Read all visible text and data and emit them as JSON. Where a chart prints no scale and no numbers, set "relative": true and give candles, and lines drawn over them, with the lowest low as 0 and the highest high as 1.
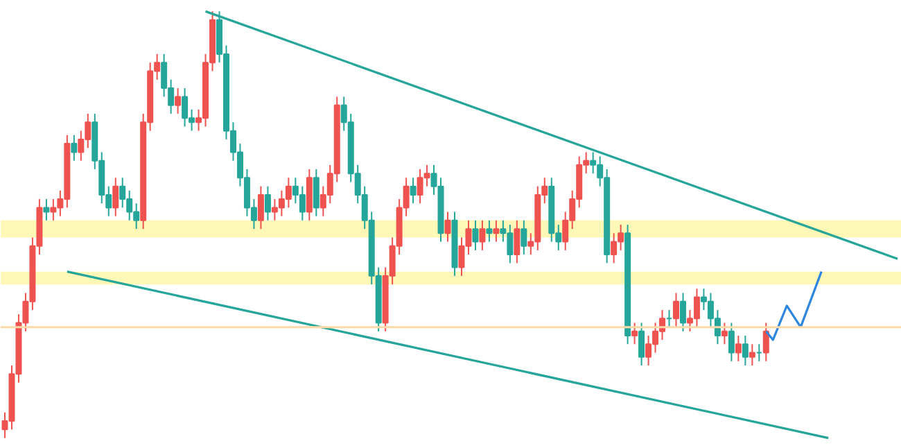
{
  "chart_data": {
    "type": "candlestick",
    "relative": true,
    "tick_labels": false,
    "categories": [
      null,
      null,
      null,
      null,
      null,
      null,
      null,
      null,
      null,
      null,
      null,
      null,
      null,
      null,
      null,
      null,
      null,
      null,
      null,
      null,
      null,
      null,
      null,
      null,
      null,
      null,
      null,
      null,
      null,
      null,
      null,
      null,
      null,
      null,
      null,
      null,
      null,
      null,
      null,
      null,
      null,
      null,
      null,
      null,
      null,
      null,
      null,
      null,
      null,
      null,
      null,
      null,
      null,
      null,
      null,
      null,
      null,
      null,
      null,
      null,
      null,
      null,
      null,
      null,
      null,
      null,
      null,
      null,
      null,
      null,
      null,
      null,
      null,
      null,
      null,
      null,
      null,
      null,
      null,
      null,
      null,
      null,
      null,
      null,
      null,
      null,
      null,
      null,
      null,
      null,
      null,
      null,
      null,
      null,
      null,
      null,
      null,
      null,
      null,
      null,
      null,
      null,
      null,
      null,
      null,
      null,
      null,
      null,
      null,
      null,
      null,
      null,
      null,
      null,
      null,
      null,
      null,
      null,
      null,
      null,
      null,
      null,
      null,
      null,
      null,
      null,
      null,
      null,
      null,
      null
    ],
    "ohlc": [
      [
        0.02,
        0.06,
        0.0,
        0.04
      ],
      [
        0.04,
        0.17,
        0.02,
        0.15
      ],
      [
        0.15,
        0.29,
        0.13,
        0.27
      ],
      [
        0.27,
        0.34,
        0.25,
        0.32
      ],
      [
        0.32,
        0.47,
        0.3,
        0.45
      ],
      [
        0.45,
        0.56,
        0.43,
        0.54
      ],
      [
        0.54,
        0.56,
        0.51,
        0.53
      ],
      [
        0.53,
        0.56,
        0.51,
        0.54
      ],
      [
        0.54,
        0.58,
        0.52,
        0.56
      ],
      [
        0.56,
        0.71,
        0.54,
        0.69
      ],
      [
        0.69,
        0.71,
        0.65,
        0.67
      ],
      [
        0.67,
        0.72,
        0.65,
        0.7
      ],
      [
        0.7,
        0.76,
        0.68,
        0.74
      ],
      [
        0.74,
        0.76,
        0.63,
        0.65
      ],
      [
        0.65,
        0.67,
        0.55,
        0.57
      ],
      [
        0.57,
        0.59,
        0.52,
        0.54
      ],
      [
        0.54,
        0.61,
        0.52,
        0.59
      ],
      [
        0.59,
        0.61,
        0.54,
        0.56
      ],
      [
        0.56,
        0.58,
        0.51,
        0.53
      ],
      [
        0.53,
        0.55,
        0.49,
        0.51
      ],
      [
        0.51,
        0.76,
        0.49,
        0.74
      ],
      [
        0.74,
        0.88,
        0.72,
        0.86
      ],
      [
        0.86,
        0.9,
        0.84,
        0.88
      ],
      [
        0.88,
        0.9,
        0.8,
        0.82
      ],
      [
        0.82,
        0.84,
        0.76,
        0.78
      ],
      [
        0.78,
        0.82,
        0.76,
        0.8
      ],
      [
        0.8,
        0.82,
        0.73,
        0.75
      ],
      [
        0.75,
        0.77,
        0.72,
        0.74
      ],
      [
        0.74,
        0.77,
        0.72,
        0.75
      ],
      [
        0.75,
        0.9,
        0.73,
        0.88
      ],
      [
        0.88,
        1.0,
        0.86,
        0.98
      ],
      [
        0.98,
        1.0,
        0.88,
        0.9
      ],
      [
        0.9,
        0.92,
        0.7,
        0.72
      ],
      [
        0.72,
        0.74,
        0.65,
        0.67
      ],
      [
        0.67,
        0.69,
        0.59,
        0.61
      ],
      [
        0.61,
        0.63,
        0.52,
        0.54
      ],
      [
        0.54,
        0.56,
        0.49,
        0.51
      ],
      [
        0.51,
        0.59,
        0.49,
        0.57
      ],
      [
        0.57,
        0.59,
        0.51,
        0.53
      ],
      [
        0.53,
        0.56,
        0.51,
        0.54
      ],
      [
        0.54,
        0.58,
        0.52,
        0.56
      ],
      [
        0.56,
        0.61,
        0.54,
        0.59
      ],
      [
        0.59,
        0.61,
        0.55,
        0.57
      ],
      [
        0.57,
        0.59,
        0.51,
        0.53
      ],
      [
        0.53,
        0.63,
        0.51,
        0.61
      ],
      [
        0.61,
        0.63,
        0.52,
        0.54
      ],
      [
        0.54,
        0.59,
        0.52,
        0.57
      ],
      [
        0.57,
        0.64,
        0.55,
        0.62
      ],
      [
        0.62,
        0.8,
        0.6,
        0.78
      ],
      [
        0.78,
        0.8,
        0.72,
        0.74
      ],
      [
        0.74,
        0.76,
        0.6,
        0.62
      ],
      [
        0.62,
        0.64,
        0.55,
        0.57
      ],
      [
        0.57,
        0.59,
        0.49,
        0.51
      ],
      [
        0.51,
        0.53,
        0.36,
        0.38
      ],
      [
        0.38,
        0.4,
        0.25,
        0.27
      ],
      [
        0.27,
        0.4,
        0.25,
        0.38
      ],
      [
        0.38,
        0.47,
        0.36,
        0.45
      ],
      [
        0.45,
        0.56,
        0.43,
        0.54
      ],
      [
        0.54,
        0.61,
        0.52,
        0.59
      ],
      [
        0.59,
        0.61,
        0.55,
        0.57
      ],
      [
        0.57,
        0.63,
        0.55,
        0.61
      ],
      [
        0.61,
        0.64,
        0.59,
        0.62
      ],
      [
        0.62,
        0.64,
        0.57,
        0.59
      ],
      [
        0.59,
        0.61,
        0.46,
        0.48
      ],
      [
        0.48,
        0.53,
        0.46,
        0.51
      ],
      [
        0.51,
        0.53,
        0.38,
        0.4
      ],
      [
        0.4,
        0.47,
        0.38,
        0.45
      ],
      [
        0.45,
        0.51,
        0.43,
        0.49
      ],
      [
        0.49,
        0.51,
        0.44,
        0.46
      ],
      [
        0.46,
        0.51,
        0.44,
        0.49
      ],
      [
        0.49,
        0.51,
        0.46,
        0.48
      ],
      [
        0.48,
        0.51,
        0.46,
        0.49
      ],
      [
        0.49,
        0.51,
        0.46,
        0.48
      ],
      [
        0.48,
        0.5,
        0.41,
        0.43
      ],
      [
        0.43,
        0.51,
        0.41,
        0.49
      ],
      [
        0.49,
        0.51,
        0.43,
        0.45
      ],
      [
        0.45,
        0.48,
        0.43,
        0.46
      ],
      [
        0.46,
        0.59,
        0.44,
        0.57
      ],
      [
        0.57,
        0.61,
        0.55,
        0.59
      ],
      [
        0.59,
        0.61,
        0.46,
        0.48
      ],
      [
        0.48,
        0.5,
        0.44,
        0.46
      ],
      [
        0.46,
        0.53,
        0.44,
        0.51
      ],
      [
        0.51,
        0.58,
        0.49,
        0.56
      ],
      [
        0.56,
        0.66,
        0.54,
        0.64
      ],
      [
        0.64,
        0.67,
        0.62,
        0.65
      ],
      [
        0.65,
        0.67,
        0.62,
        0.64
      ],
      [
        0.64,
        0.66,
        0.59,
        0.61
      ],
      [
        0.61,
        0.63,
        0.41,
        0.43
      ],
      [
        0.43,
        0.48,
        0.41,
        0.46
      ],
      [
        0.46,
        0.5,
        0.44,
        0.48
      ],
      [
        0.48,
        0.5,
        0.22,
        0.24
      ],
      [
        0.24,
        0.27,
        0.22,
        0.25
      ],
      [
        0.25,
        0.27,
        0.17,
        0.19
      ],
      [
        0.19,
        0.24,
        0.17,
        0.22
      ],
      [
        0.22,
        0.27,
        0.2,
        0.25
      ],
      [
        0.25,
        0.3,
        0.23,
        0.28
      ],
      [
        0.28,
        0.3,
        0.26,
        0.28
      ],
      [
        0.28,
        0.34,
        0.26,
        0.32
      ],
      [
        0.32,
        0.34,
        0.25,
        0.27
      ],
      [
        0.27,
        0.3,
        0.25,
        0.28
      ],
      [
        0.28,
        0.35,
        0.26,
        0.33
      ],
      [
        0.33,
        0.35,
        0.3,
        0.32
      ],
      [
        0.32,
        0.34,
        0.26,
        0.28
      ],
      [
        0.28,
        0.3,
        0.22,
        0.24
      ],
      [
        0.24,
        0.27,
        0.22,
        0.25
      ],
      [
        0.25,
        0.27,
        0.18,
        0.2
      ],
      [
        0.2,
        0.24,
        0.18,
        0.22
      ],
      [
        0.22,
        0.24,
        0.17,
        0.19
      ],
      [
        0.19,
        0.22,
        0.17,
        0.2
      ],
      [
        0.2,
        0.22,
        0.18,
        0.2
      ],
      [
        0.2,
        0.27,
        0.18,
        0.25
      ],
      null,
      null,
      null,
      null,
      null,
      null,
      null,
      null,
      null,
      null,
      null,
      null,
      null,
      null,
      null,
      null,
      null,
      null,
      null
    ],
    "colors": [
      "#ef5350",
      "#ef5350",
      "#ef5350",
      "#ef5350",
      "#ef5350",
      "#ef5350",
      "#26a69a",
      "#ef5350",
      "#ef5350",
      "#ef5350",
      "#26a69a",
      "#ef5350",
      "#ef5350",
      "#26a69a",
      "#26a69a",
      "#26a69a",
      "#ef5350",
      "#26a69a",
      "#26a69a",
      "#26a69a",
      "#ef5350",
      "#ef5350",
      "#ef5350",
      "#26a69a",
      "#26a69a",
      "#ef5350",
      "#26a69a",
      "#26a69a",
      "#ef5350",
      "#ef5350",
      "#ef5350",
      "#26a69a",
      "#26a69a",
      "#26a69a",
      "#26a69a",
      "#26a69a",
      "#26a69a",
      "#ef5350",
      "#26a69a",
      "#ef5350",
      "#ef5350",
      "#ef5350",
      "#26a69a",
      "#26a69a",
      "#ef5350",
      "#26a69a",
      "#ef5350",
      "#ef5350",
      "#ef5350",
      "#26a69a",
      "#26a69a",
      "#26a69a",
      "#26a69a",
      "#26a69a",
      "#26a69a",
      "#ef5350",
      "#ef5350",
      "#ef5350",
      "#ef5350",
      "#26a69a",
      "#ef5350",
      "#ef5350",
      "#26a69a",
      "#26a69a",
      "#ef5350",
      "#26a69a",
      "#ef5350",
      "#ef5350",
      "#26a69a",
      "#ef5350",
      "#26a69a",
      "#ef5350",
      "#26a69a",
      "#26a69a",
      "#ef5350",
      "#26a69a",
      "#ef5350",
      "#ef5350",
      "#ef5350",
      "#26a69a",
      "#26a69a",
      "#ef5350",
      "#ef5350",
      "#ef5350",
      "#ef5350",
      "#26a69a",
      "#26a69a",
      "#26a69a",
      "#ef5350",
      "#ef5350",
      "#26a69a",
      "#ef5350",
      "#26a69a",
      "#ef5350",
      "#ef5350",
      "#ef5350",
      "#26a69a",
      "#ef5350",
      "#26a69a",
      "#ef5350",
      "#ef5350",
      "#26a69a",
      "#26a69a",
      "#26a69a",
      "#ef5350",
      "#26a69a",
      "#ef5350",
      "#26a69a",
      "#ef5350",
      "#26a69a",
      "#ef5350",
      null,
      null,
      null,
      null,
      null,
      null,
      null,
      null,
      null,
      null,
      null,
      null,
      null,
      null,
      null,
      null,
      null,
      null,
      null
    ],
    "series": [
      {
        "type": "line",
        "color": "#26a69a",
        "values": [
          null,
          null,
          null,
          null,
          null,
          null,
          null,
          null,
          null,
          null,
          null,
          null,
          null,
          null,
          null,
          null,
          null,
          null,
          null,
          null,
          null,
          null,
          null,
          null,
          null,
          null,
          null,
          null,
          null,
          1.0,
          null,
          null,
          null,
          null,
          null,
          null,
          null,
          null,
          null,
          null,
          null,
          null,
          null,
          null,
          null,
          null,
          null,
          null,
          null,
          null,
          null,
          null,
          null,
          null,
          null,
          null,
          null,
          null,
          null,
          null,
          null,
          null,
          null,
          null,
          null,
          null,
          null,
          null,
          null,
          null,
          null,
          null,
          null,
          null,
          null,
          null,
          null,
          null,
          null,
          null,
          null,
          null,
          null,
          null,
          null,
          null,
          null,
          null,
          null,
          null,
          null,
          null,
          null,
          null,
          null,
          null,
          null,
          null,
          null,
          null,
          null,
          null,
          null,
          null,
          null,
          null,
          null,
          null,
          null,
          null,
          null,
          null,
          null,
          null,
          null,
          null,
          null,
          null,
          null,
          null,
          null,
          null,
          null,
          null,
          null,
          null,
          null,
          null,
          null,
          0.42
        ]
      },
      {
        "type": "line",
        "color": "#26a69a",
        "values": [
          null,
          null,
          null,
          null,
          null,
          null,
          null,
          null,
          null,
          0.39,
          null,
          null,
          null,
          null,
          null,
          null,
          null,
          null,
          null,
          null,
          null,
          null,
          null,
          null,
          null,
          null,
          null,
          null,
          null,
          null,
          null,
          null,
          null,
          null,
          null,
          null,
          null,
          null,
          null,
          null,
          null,
          null,
          null,
          null,
          null,
          null,
          null,
          null,
          null,
          null,
          null,
          null,
          null,
          null,
          null,
          null,
          null,
          null,
          null,
          null,
          null,
          null,
          null,
          null,
          null,
          null,
          null,
          null,
          null,
          null,
          null,
          null,
          null,
          null,
          null,
          null,
          null,
          null,
          null,
          null,
          null,
          null,
          null,
          null,
          null,
          null,
          null,
          null,
          null,
          null,
          null,
          null,
          null,
          null,
          null,
          null,
          null,
          null,
          null,
          null,
          null,
          null,
          null,
          null,
          null,
          null,
          null,
          null,
          null,
          null,
          null,
          null,
          null,
          null,
          null,
          null,
          null,
          null,
          null,
          0.0,
          null,
          null,
          null,
          null,
          null,
          null,
          null,
          null,
          null,
          null
        ]
      },
      {
        "type": "line",
        "color": "#2e86de",
        "values": [
          null,
          null,
          null,
          null,
          null,
          null,
          null,
          null,
          null,
          null,
          null,
          null,
          null,
          null,
          null,
          null,
          null,
          null,
          null,
          null,
          null,
          null,
          null,
          null,
          null,
          null,
          null,
          null,
          null,
          null,
          null,
          null,
          null,
          null,
          null,
          null,
          null,
          null,
          null,
          null,
          null,
          null,
          null,
          null,
          null,
          null,
          null,
          null,
          null,
          null,
          null,
          null,
          null,
          null,
          null,
          null,
          null,
          null,
          null,
          null,
          null,
          null,
          null,
          null,
          null,
          null,
          null,
          null,
          null,
          null,
          null,
          null,
          null,
          null,
          null,
          null,
          null,
          null,
          null,
          null,
          null,
          null,
          null,
          null,
          null,
          null,
          null,
          null,
          null,
          null,
          null,
          null,
          null,
          null,
          null,
          null,
          null,
          null,
          null,
          null,
          null,
          null,
          null,
          null,
          null,
          null,
          null,
          null,
          null,
          null,
          0.25,
          0.23,
          null,
          0.31,
          null,
          0.26,
          null,
          null,
          0.39,
          null,
          null,
          null,
          null,
          null,
          null,
          null,
          null,
          null,
          null,
          null
        ]
      }
    ],
    "ref_lines": [
      {
        "axis": "y",
        "value": 0.26,
        "color": "#fcd9a8"
      }
    ],
    "bands": [
      {
        "axis": "y",
        "from": 0.47,
        "to": 0.51,
        "color": "#fff59d"
      },
      {
        "axis": "y",
        "from": 0.36,
        "to": 0.39,
        "color": "#fff59d"
      }
    ]
  }
}
